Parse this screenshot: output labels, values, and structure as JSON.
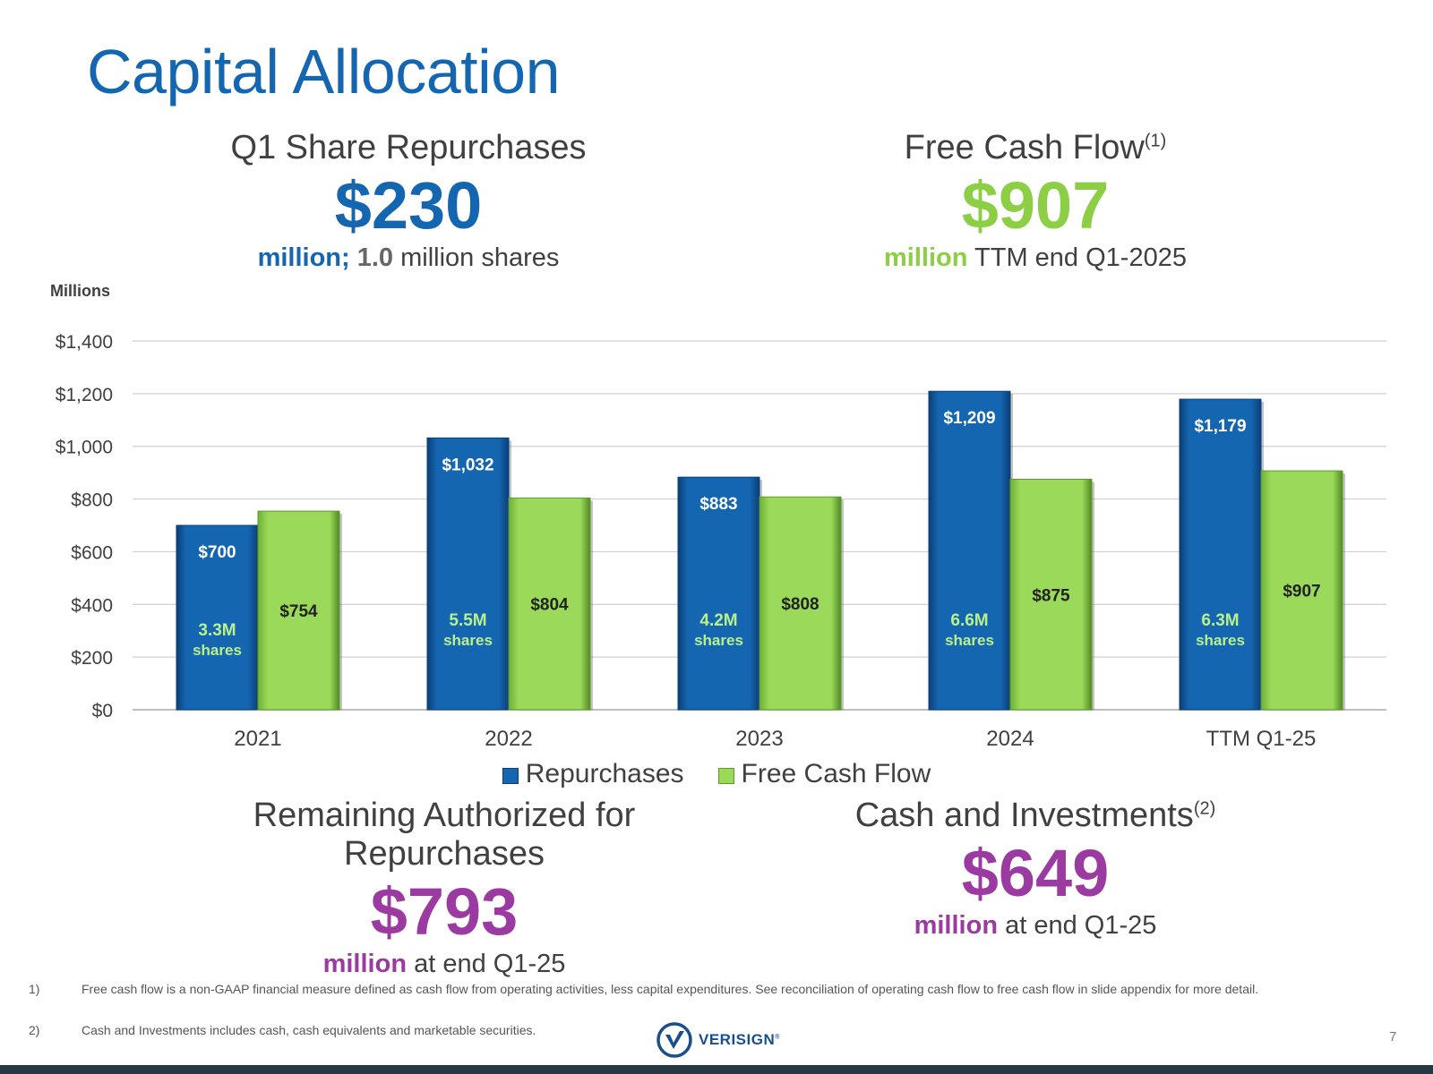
{
  "slide": {
    "title": "Capital Allocation",
    "page_number": "7",
    "logo_text": "VERISIGN",
    "logo_mark": "®"
  },
  "kpis": {
    "repurchases": {
      "heading": "Q1 Share Repurchases",
      "value": "$230",
      "sub_bold": "million;",
      "sub_num": "1.0",
      "sub_rest": "million shares"
    },
    "fcf": {
      "heading": "Free Cash Flow",
      "heading_note": "(1)",
      "value": "$907",
      "sub_bold": "million",
      "sub_rest": "TTM end Q1-2025"
    },
    "remaining": {
      "heading": "Remaining Authorized for Repurchases",
      "value": "$793",
      "sub_bold": "million",
      "sub_rest": "at end Q1-25"
    },
    "cash": {
      "heading": "Cash and Investments",
      "heading_note": "(2)",
      "value": "$649",
      "sub_bold": "million",
      "sub_rest": "at end Q1-25"
    }
  },
  "footnotes": [
    {
      "num": "1)",
      "text": "Free cash flow is a non-GAAP financial measure defined as cash flow from operating activities, less capital expenditures. See reconciliation of operating cash flow to free cash flow in slide appendix for more detail."
    },
    {
      "num": "2)",
      "text": "Cash and Investments includes cash, cash equivalents and marketable securities."
    }
  ],
  "colors": {
    "repurchases": "#1566b0",
    "repurchases_dark": "#0b3f78",
    "fcf": "#9ad95a",
    "fcf_dark": "#5e9a2a",
    "grid": "#d0d0d0"
  },
  "chart_data": {
    "type": "bar",
    "unit_label": "Millions",
    "categories": [
      "2021",
      "2022",
      "2023",
      "2024",
      "TTM Q1-25"
    ],
    "ylim": [
      0,
      1400
    ],
    "yticks": [
      0,
      200,
      400,
      600,
      800,
      1000,
      1200,
      1400
    ],
    "ytick_labels": [
      "$0",
      "$200",
      "$400",
      "$600",
      "$800",
      "$1,000",
      "$1,200",
      "$1,400"
    ],
    "series": [
      {
        "name": "Repurchases",
        "values": [
          700,
          1032,
          883,
          1209,
          1179
        ],
        "labels": [
          "$700",
          "$1,032",
          "$883",
          "$1,209",
          "$1,179"
        ],
        "shares": [
          "3.3M",
          "5.5M",
          "4.2M",
          "6.6M",
          "6.3M"
        ],
        "shares_word": "shares"
      },
      {
        "name": "Free Cash Flow",
        "values": [
          754,
          804,
          808,
          875,
          907
        ],
        "labels": [
          "$754",
          "$804",
          "$808",
          "$875",
          "$907"
        ]
      }
    ],
    "legend": [
      "Repurchases",
      "Free Cash Flow"
    ]
  }
}
